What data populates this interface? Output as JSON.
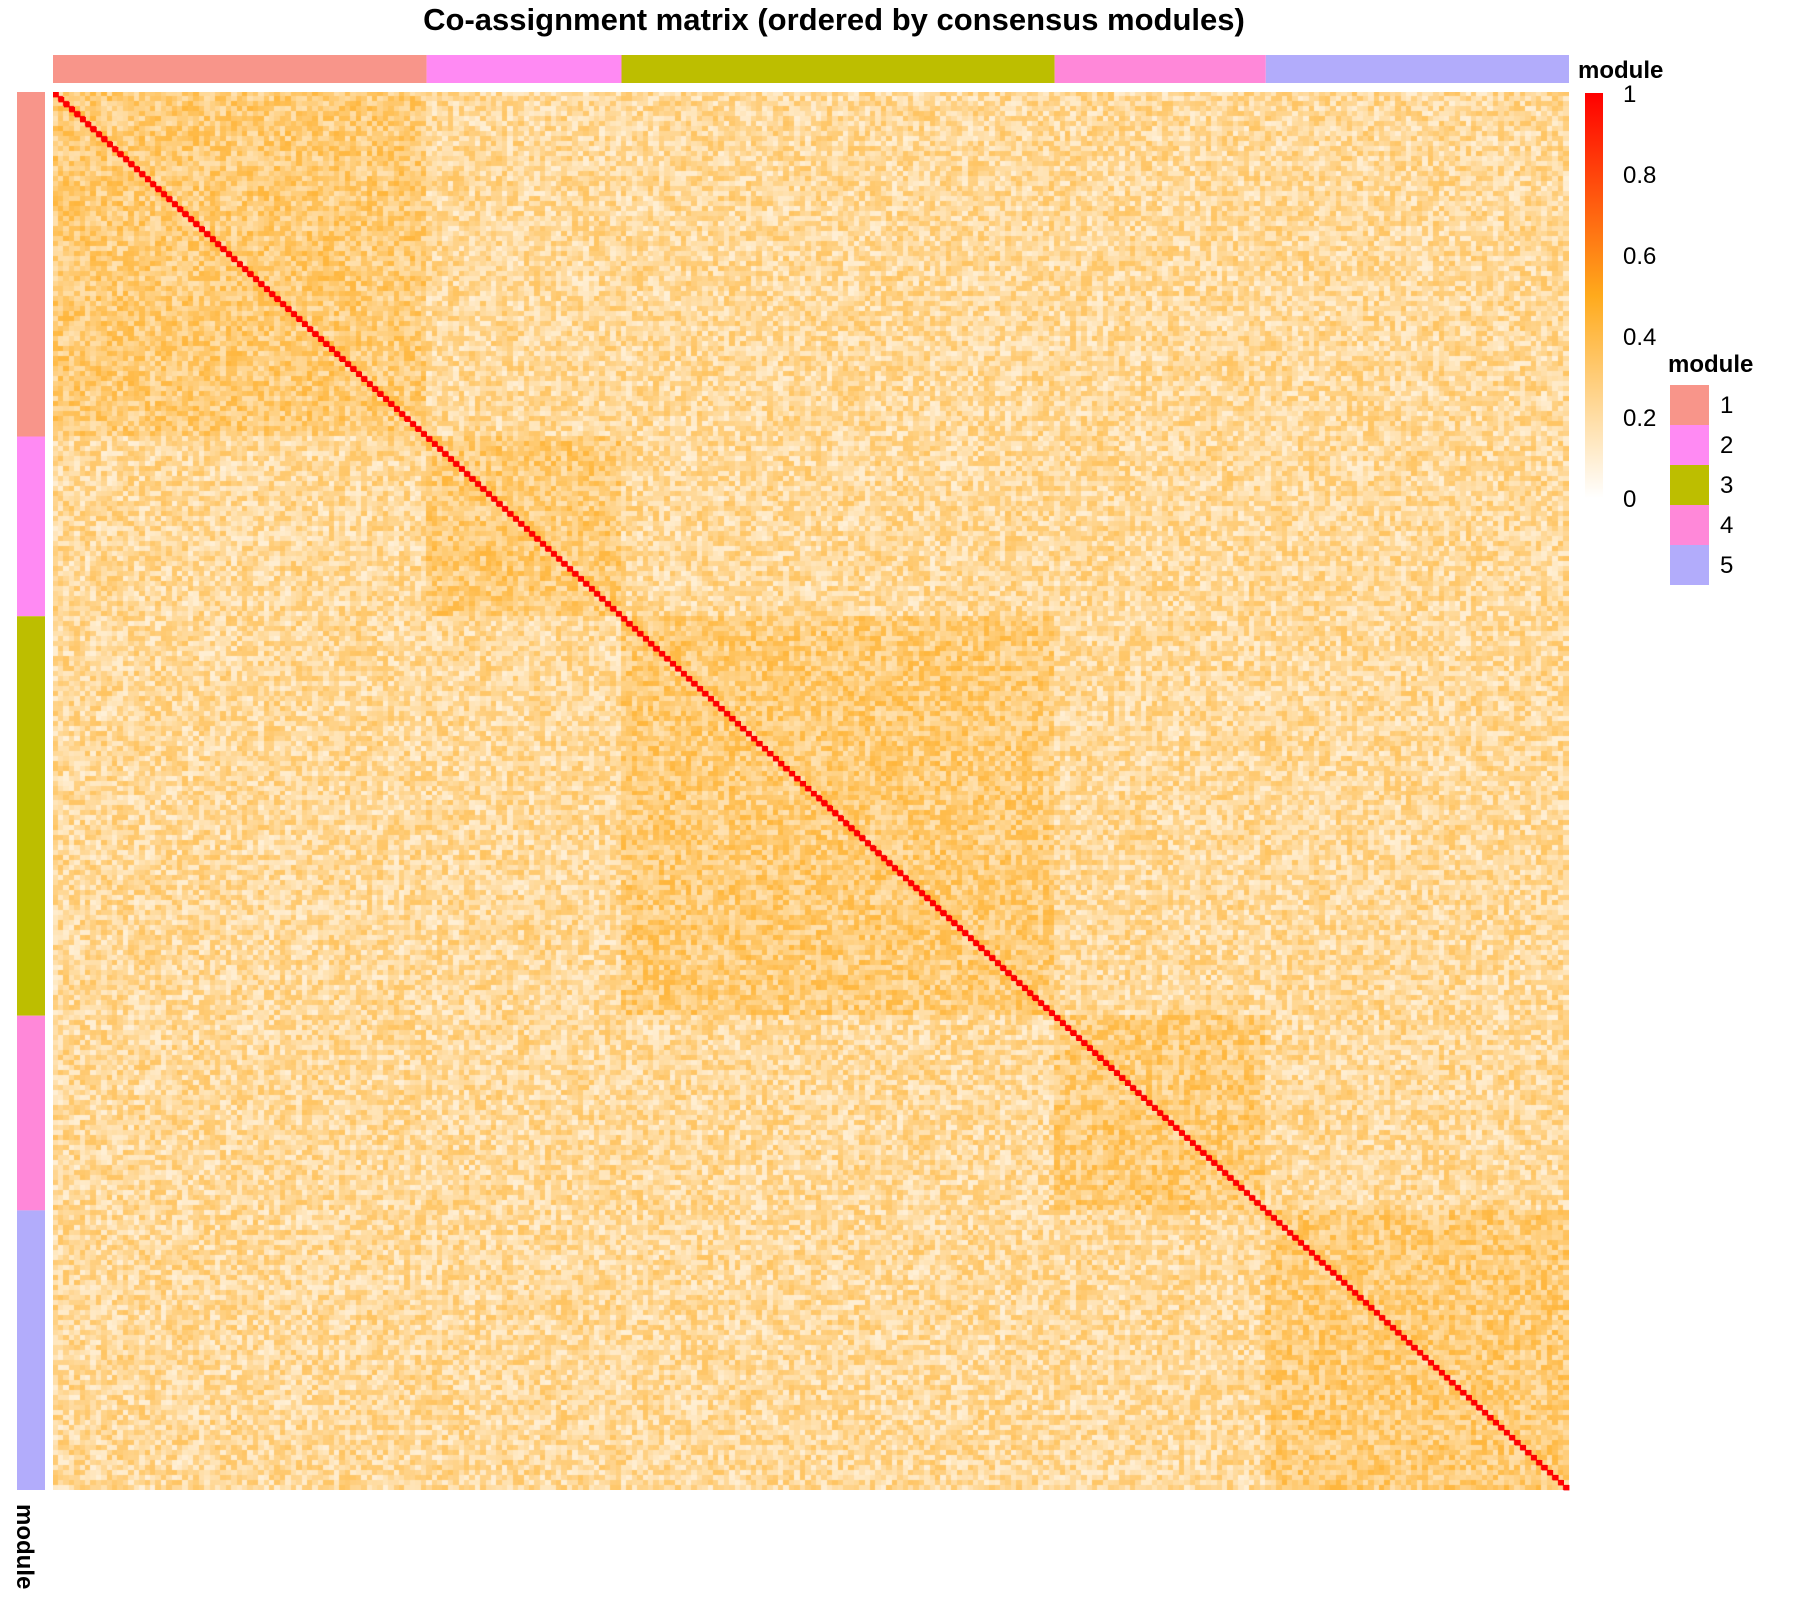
{
  "chart_data": {
    "type": "heatmap",
    "title": "Co-assignment matrix (ordered by consensus modules)",
    "n_items": 280,
    "modules": [
      {
        "label": "1",
        "size": 69,
        "color": "#F8958A"
      },
      {
        "label": "2",
        "size": 36,
        "color": "#FF8AF3"
      },
      {
        "label": "3",
        "size": 80,
        "color": "#BDBE00"
      },
      {
        "label": "4",
        "size": 39,
        "color": "#FF88D9"
      },
      {
        "label": "5",
        "size": 56,
        "color": "#B2ACFB"
      }
    ],
    "value_range": [
      0,
      1
    ],
    "diagonal_value": 1,
    "within_module_mean": 0.3,
    "between_module_mean": 0.22,
    "color_scale": [
      {
        "value": 0,
        "color": "#FFFFFF"
      },
      {
        "value": 0.5,
        "color": "#FFAA1C"
      },
      {
        "value": 1,
        "color": "#FF0000"
      }
    ],
    "colorbar_ticks": [
      "0",
      "0.2",
      "0.4",
      "0.6",
      "0.8",
      "1"
    ],
    "top_annotation_label": "module",
    "left_annotation_label": "module",
    "legend_title": "module"
  }
}
